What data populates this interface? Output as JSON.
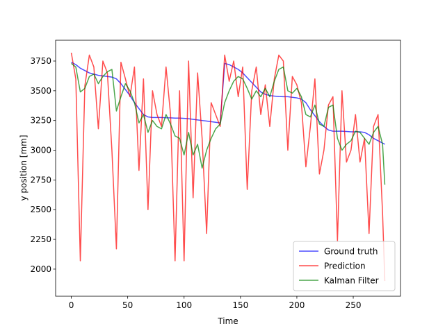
{
  "chart_data": {
    "type": "line",
    "x_label": "Time",
    "y_label": "y position [mm]",
    "x": [
      0,
      4,
      8,
      12,
      16,
      20,
      24,
      28,
      32,
      36,
      40,
      44,
      48,
      52,
      56,
      60,
      64,
      68,
      72,
      76,
      80,
      84,
      88,
      92,
      96,
      100,
      104,
      108,
      112,
      116,
      120,
      124,
      128,
      132,
      136,
      140,
      144,
      148,
      152,
      156,
      160,
      164,
      168,
      172,
      176,
      180,
      184,
      188,
      192,
      196,
      200,
      204,
      208,
      212,
      216,
      220,
      224,
      228,
      232,
      236,
      240,
      244,
      248,
      252,
      256,
      260,
      264,
      268,
      272,
      276,
      278
    ],
    "series": [
      {
        "name": "Ground truth",
        "color": "#0000ff",
        "values": [
          3740,
          3720,
          3690,
          3670,
          3650,
          3640,
          3630,
          3625,
          3620,
          3615,
          3600,
          3560,
          3510,
          3460,
          3400,
          3350,
          3300,
          3280,
          3275,
          3275,
          3275,
          3273,
          3272,
          3270,
          3270,
          3268,
          3265,
          3260,
          3255,
          3250,
          3245,
          3240,
          3235,
          3230,
          3730,
          3720,
          3700,
          3680,
          3650,
          3610,
          3570,
          3530,
          3490,
          3470,
          3460,
          3455,
          3452,
          3450,
          3450,
          3445,
          3440,
          3430,
          3400,
          3340,
          3290,
          3240,
          3200,
          3170,
          3160,
          3160,
          3160,
          3158,
          3155,
          3155,
          3155,
          3150,
          3130,
          3100,
          3080,
          3060,
          3050
        ]
      },
      {
        "name": "Prediction",
        "color": "#ff0000",
        "values": [
          3820,
          3600,
          2070,
          3540,
          3800,
          3700,
          3180,
          3750,
          3650,
          3000,
          2170,
          3740,
          3600,
          3450,
          3700,
          2830,
          3600,
          2500,
          3500,
          3300,
          3200,
          3700,
          3300,
          2070,
          3500,
          2070,
          3750,
          2600,
          3650,
          3100,
          2300,
          3400,
          3300,
          3200,
          3800,
          3580,
          3750,
          3450,
          3700,
          2670,
          3500,
          3700,
          3300,
          3550,
          3200,
          3600,
          3800,
          3750,
          3000,
          3620,
          3550,
          3400,
          2860,
          3200,
          3600,
          2800,
          3000,
          3380,
          3450,
          2240,
          3500,
          2900,
          3000,
          3300,
          2900,
          3100,
          2300,
          3200,
          3300,
          2470,
          1900
        ]
      },
      {
        "name": "Kalman Filter",
        "color": "#008000",
        "values": [
          3730,
          3700,
          3490,
          3520,
          3620,
          3640,
          3560,
          3620,
          3660,
          3680,
          3330,
          3450,
          3560,
          3500,
          3400,
          3230,
          3300,
          3150,
          3250,
          3200,
          3180,
          3300,
          3220,
          3120,
          3100,
          2960,
          3150,
          2960,
          3050,
          2850,
          3000,
          3100,
          3180,
          3220,
          3400,
          3500,
          3580,
          3620,
          3600,
          3520,
          3430,
          3500,
          3450,
          3520,
          3450,
          3580,
          3680,
          3700,
          3500,
          3480,
          3520,
          3450,
          3300,
          3280,
          3380,
          3220,
          3200,
          3360,
          3380,
          3100,
          3000,
          3050,
          3080,
          3160,
          3150,
          3100,
          3050,
          3150,
          3200,
          3050,
          2710
        ]
      }
    ],
    "xlim": [
      -13.9,
      291.9
    ],
    "ylim": [
      1772,
      3925
    ],
    "xticks": [
      0,
      50,
      100,
      150,
      200,
      250
    ],
    "yticks": [
      2000,
      2250,
      2500,
      2750,
      3000,
      3250,
      3500,
      3750
    ],
    "alpha": 0.7,
    "legend": "lower right"
  }
}
